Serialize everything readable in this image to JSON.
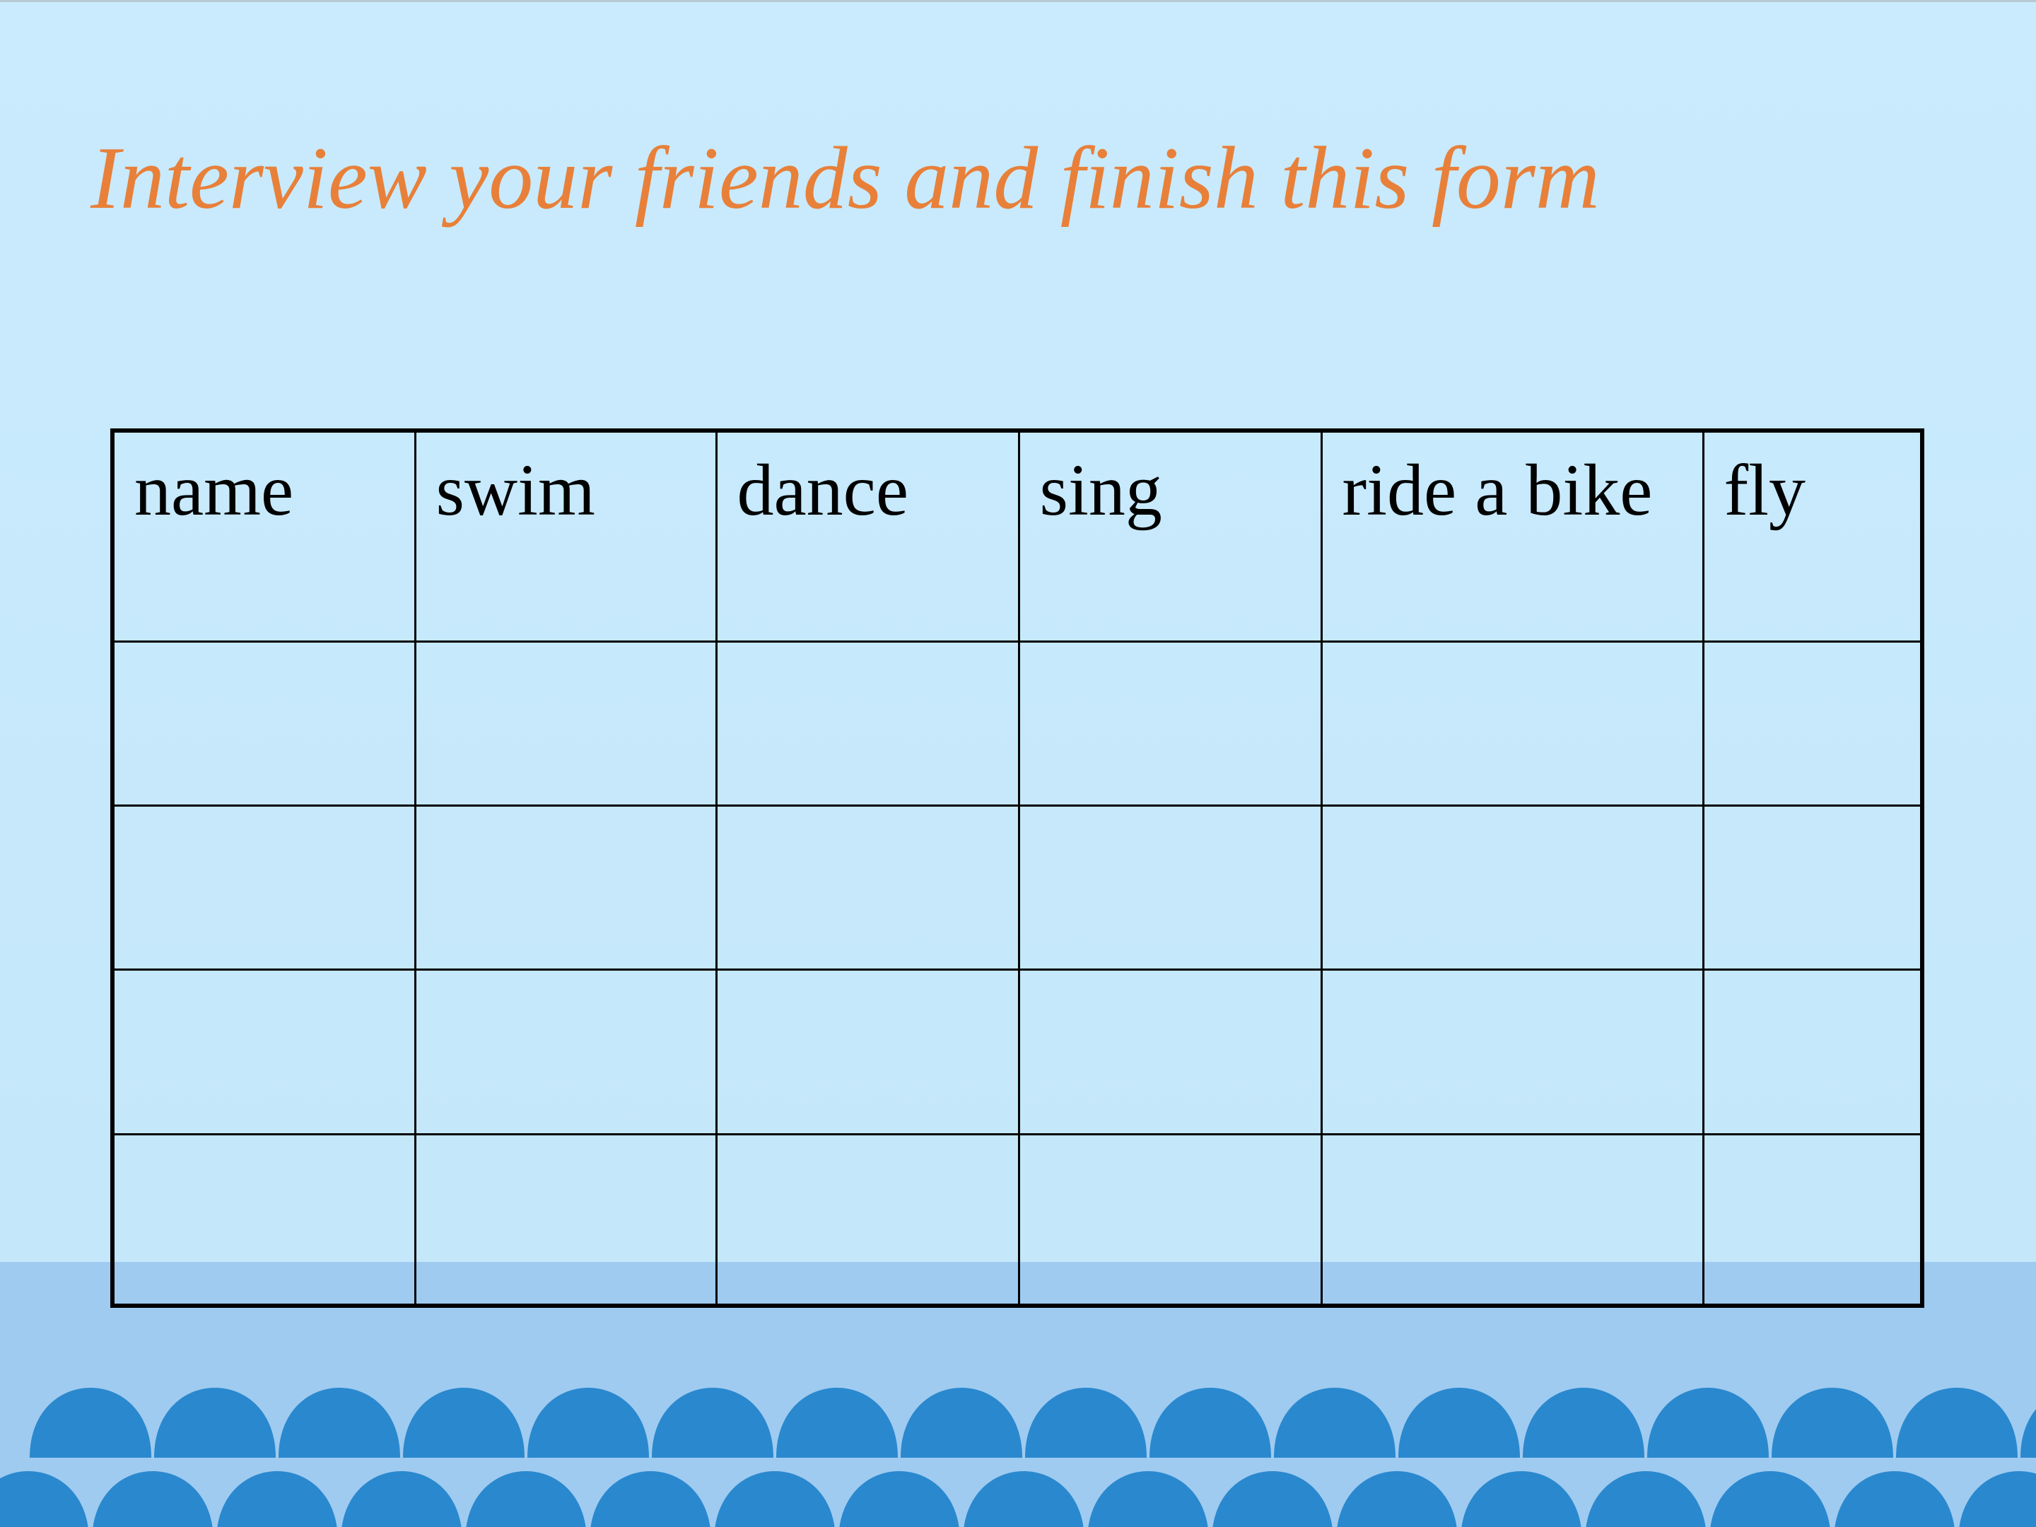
{
  "title": "Interview your friends and finish this form",
  "table": {
    "headers": [
      "name",
      "swim",
      "dance",
      "sing",
      "ride a bike",
      "fly"
    ],
    "empty_rows": 4
  },
  "colors": {
    "title": "#e8803a",
    "background": "#c7e9fb",
    "band": "#9fcbf0",
    "scallops": "#2a88ce"
  }
}
